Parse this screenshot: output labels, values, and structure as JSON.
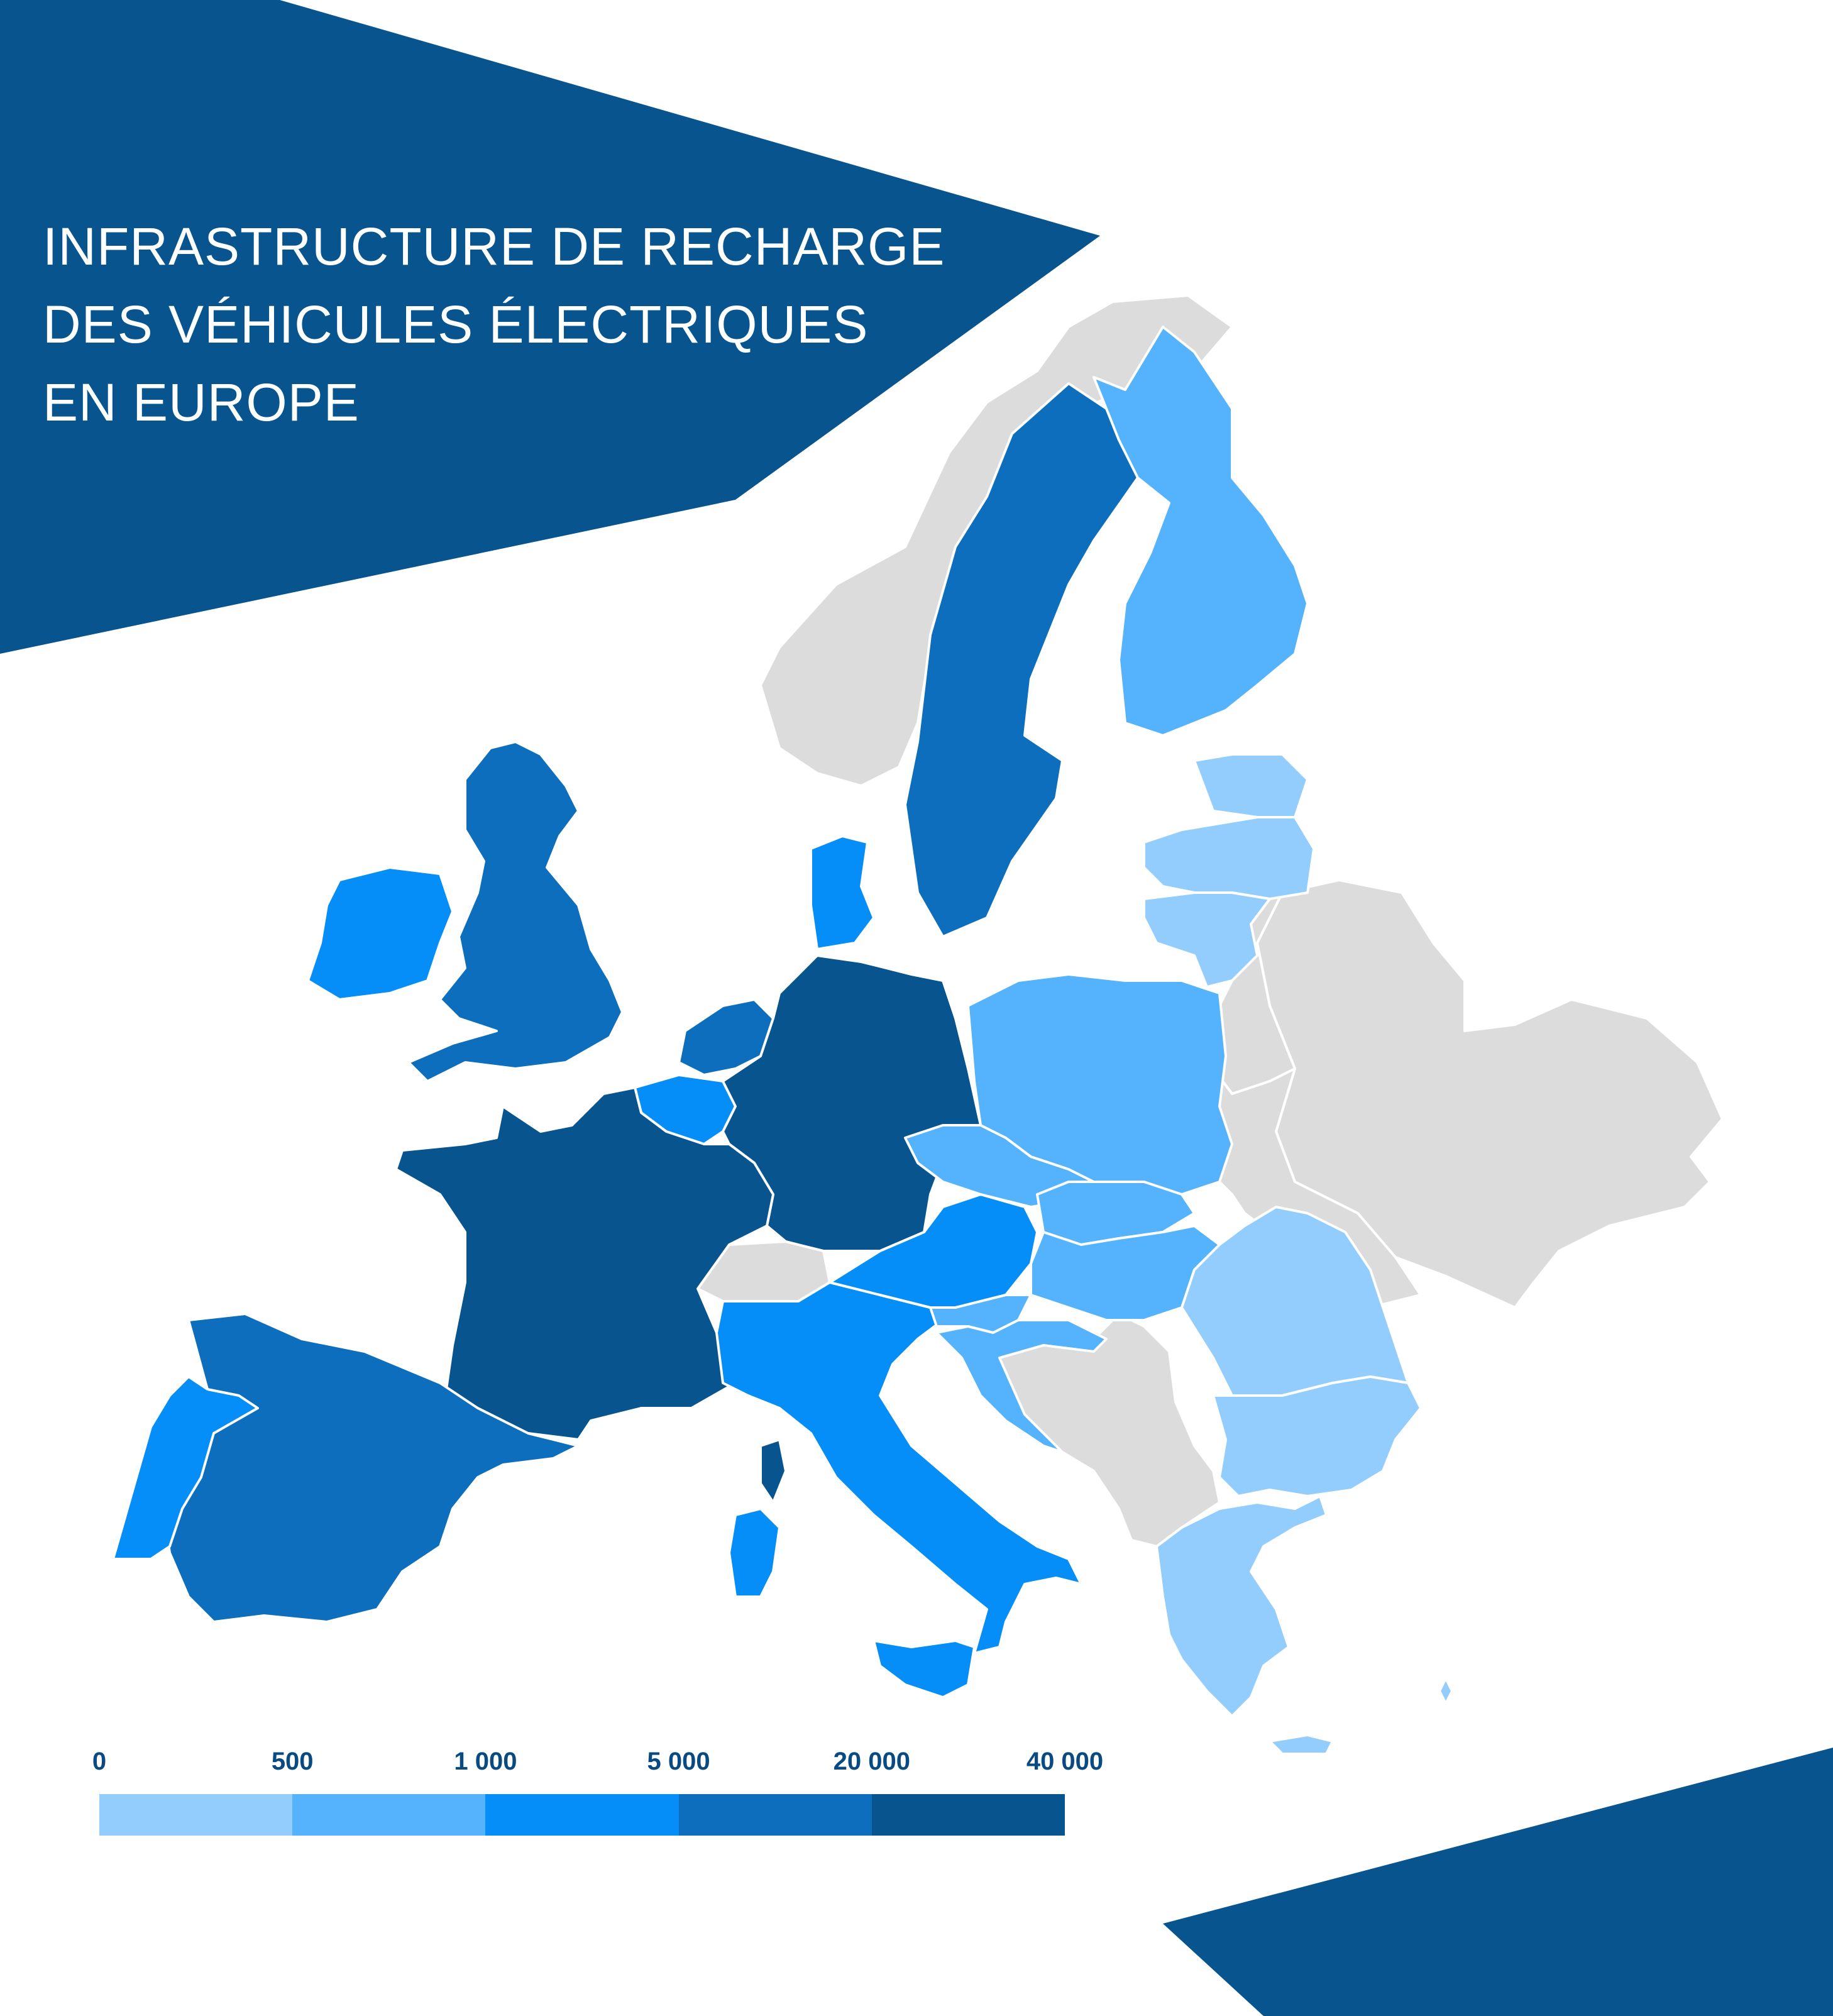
{
  "title": {
    "lines": [
      "INFRASTRUCTURE DE RECHARGE",
      "DES VÉHICULES ÉLECTRIQUES",
      "EN EUROPE"
    ]
  },
  "legend": {
    "labels": [
      "0",
      "500",
      "1 000",
      "5 000",
      "20 000",
      "40 000"
    ],
    "colors": [
      "#93cdfd",
      "#55b2fc",
      "#068ef8",
      "#0c6ebc",
      "#07548f"
    ]
  },
  "colors": {
    "banner": "#07548f",
    "non_member": "#dcdcdc",
    "border": "#ffffff",
    "legend_text": "#0a4a82"
  },
  "regions": [
    {
      "name": "Norvège",
      "class": "none"
    },
    {
      "name": "Suède",
      "class": 3
    },
    {
      "name": "Finlande",
      "class": 1
    },
    {
      "name": "Russie",
      "class": "none"
    },
    {
      "name": "Royaume-Uni",
      "class": 3
    },
    {
      "name": "Irlande",
      "class": 2
    },
    {
      "name": "Danemark",
      "class": 2
    },
    {
      "name": "Pays-Bas",
      "class": 3
    },
    {
      "name": "Belgique",
      "class": 2
    },
    {
      "name": "Allemagne",
      "class": 4
    },
    {
      "name": "France",
      "class": 4
    },
    {
      "name": "Suisse",
      "class": "none"
    },
    {
      "name": "Espagne",
      "class": 3
    },
    {
      "name": "Portugal",
      "class": 2
    },
    {
      "name": "Italie",
      "class": 2
    },
    {
      "name": "Autriche",
      "class": 2
    },
    {
      "name": "Tchéquie",
      "class": 1
    },
    {
      "name": "Pologne",
      "class": 1
    },
    {
      "name": "Slovaquie",
      "class": 1
    },
    {
      "name": "Hongrie",
      "class": 1
    },
    {
      "name": "Slovénie",
      "class": 1
    },
    {
      "name": "Croatie",
      "class": 1
    },
    {
      "name": "Roumanie",
      "class": 0
    },
    {
      "name": "Bulgarie",
      "class": 0
    },
    {
      "name": "Grèce",
      "class": 0
    },
    {
      "name": "Estonie",
      "class": 0
    },
    {
      "name": "Lettonie",
      "class": 0
    },
    {
      "name": "Lituanie",
      "class": 0
    },
    {
      "name": "Biélorussie",
      "class": "none"
    },
    {
      "name": "Ukraine",
      "class": "none"
    },
    {
      "name": "Balkans occidentaux",
      "class": "none"
    },
    {
      "name": "Chypre",
      "class": 0
    }
  ]
}
